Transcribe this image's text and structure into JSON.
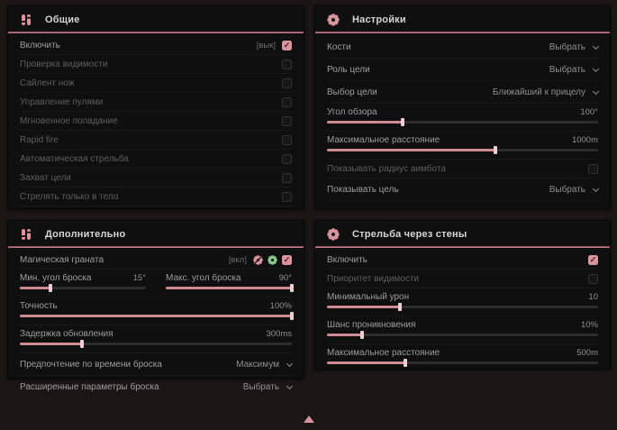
{
  "colors": {
    "accent": "#d9939c",
    "accent_dark": "#7e434b",
    "green": "#8bc48b",
    "panel_bg": "#0f0f0f",
    "page_bg": "#1c1516"
  },
  "icons": {
    "check": "✓"
  },
  "panels": {
    "general": {
      "title": "Общие",
      "rows": [
        {
          "label": "Включить",
          "tag": "[вык]"
        },
        {
          "label": "Проверка видимости"
        },
        {
          "label": "Сайлент нож"
        },
        {
          "label": "Управление пулями"
        },
        {
          "label": "Мгновенное попадание"
        },
        {
          "label": "Rapid fire"
        },
        {
          "label": "Автоматическая стрельба"
        },
        {
          "label": "Захват цели"
        },
        {
          "label": "Стрелять только в тело"
        }
      ]
    },
    "settings": {
      "title": "Настройки",
      "rows": [
        {
          "label": "Кости",
          "value": "Выбрать"
        },
        {
          "label": "Роль цели",
          "value": "Выбрать"
        },
        {
          "label": "Выбор цели",
          "value": "Ближайший к прицелу"
        },
        {
          "label": "Угол обзора",
          "value": "100°",
          "percent": 28
        },
        {
          "label": "Максимальное расстояние",
          "value": "1000m",
          "percent": 62
        },
        {
          "label": "Показывать радиус аимбота"
        },
        {
          "label": "Показывать цель",
          "value": "Выбрать"
        }
      ]
    },
    "additional": {
      "title": "Дополнительно",
      "rows": [
        {
          "label": "Магическая граната",
          "tag": "[вкл]"
        },
        {
          "label": "Мин. угол броска",
          "value": "15°",
          "percent": 24
        },
        {
          "label": "Макс. угол броска",
          "value": "90°",
          "percent": 100
        },
        {
          "label": "Точность",
          "value": "100%",
          "percent": 100
        },
        {
          "label": "Задержка обновления",
          "value": "300ms",
          "percent": 23
        },
        {
          "label": "Предпочтение по времени броска",
          "value": "Максимум"
        },
        {
          "label": "Расширенные параметры броска",
          "value": "Выбрать"
        }
      ]
    },
    "walls": {
      "title": "Стрельба через стены",
      "rows": [
        {
          "label": "Включить"
        },
        {
          "label": "Приоритет видимости"
        },
        {
          "label": "Минимальный урон",
          "value": "10",
          "percent": 27
        },
        {
          "label": "Шанс проникновения",
          "value": "10%",
          "percent": 13
        },
        {
          "label": "Максимальное расстояние",
          "value": "500m",
          "percent": 29
        }
      ]
    }
  }
}
